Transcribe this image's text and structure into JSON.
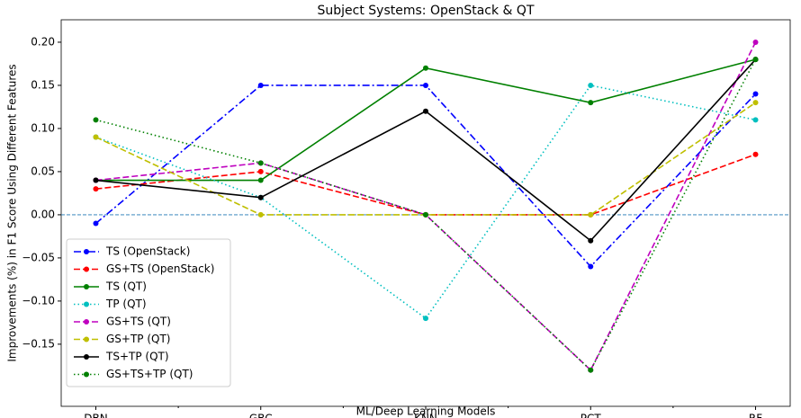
{
  "chart_data": {
    "type": "line",
    "title": "Subject Systems: OpenStack & QT",
    "x_label": "ML/Deep Learning Models",
    "y_label": "Improvements (%) in F1 Score Using Different Features",
    "categories": [
      "DBN",
      "GBC",
      "KNN",
      "PCT",
      "RF"
    ],
    "series": [
      {
        "name": "TS (OpenStack)",
        "color": "#0000ff",
        "linestyle": "dashdot",
        "values": [
          -0.01,
          0.15,
          0.15,
          -0.06,
          0.14
        ]
      },
      {
        "name": "GS+TS (OpenStack)",
        "color": "#ff0000",
        "linestyle": "dashed",
        "values": [
          0.03,
          0.05,
          0.0,
          0.0,
          0.07
        ]
      },
      {
        "name": "TS (QT)",
        "color": "#008000",
        "linestyle": "solid",
        "values": [
          0.04,
          0.04,
          0.17,
          0.13,
          0.18
        ]
      },
      {
        "name": "TP (QT)",
        "color": "#00bfbf",
        "linestyle": "dotted",
        "values": [
          0.09,
          0.02,
          -0.12,
          0.15,
          0.11
        ]
      },
      {
        "name": "GS+TS (QT)",
        "color": "#bf00bf",
        "linestyle": "dashed",
        "values": [
          0.04,
          0.06,
          0.0,
          -0.18,
          0.2
        ]
      },
      {
        "name": "GS+TP (QT)",
        "color": "#bfbf00",
        "linestyle": "dashed",
        "values": [
          0.09,
          0.0,
          0.0,
          0.0,
          0.13
        ]
      },
      {
        "name": "TS+TP (QT)",
        "color": "#000000",
        "linestyle": "solid",
        "values": [
          0.04,
          0.02,
          0.12,
          -0.03,
          0.18
        ]
      },
      {
        "name": "GS+TS+TP (QT)",
        "color": "#008000",
        "linestyle": "dotted",
        "values": [
          0.11,
          0.06,
          0.0,
          -0.18,
          0.18
        ]
      }
    ],
    "reference_line": {
      "value": 0,
      "color": "#1f77b4"
    },
    "ylim": [
      -0.222,
      0.226
    ],
    "yticks": [
      {
        "value": -0.15,
        "label": "−0.15"
      },
      {
        "value": -0.1,
        "label": "−0.10"
      },
      {
        "value": -0.05,
        "label": "−0.05"
      },
      {
        "value": 0,
        "label": "0.00"
      },
      {
        "value": 0.05,
        "label": "0.05"
      },
      {
        "value": 0.1,
        "label": "0.10"
      },
      {
        "value": 0.15,
        "label": "0.15"
      },
      {
        "value": 0.2,
        "label": "0.20"
      }
    ],
    "legend": "lower left"
  }
}
